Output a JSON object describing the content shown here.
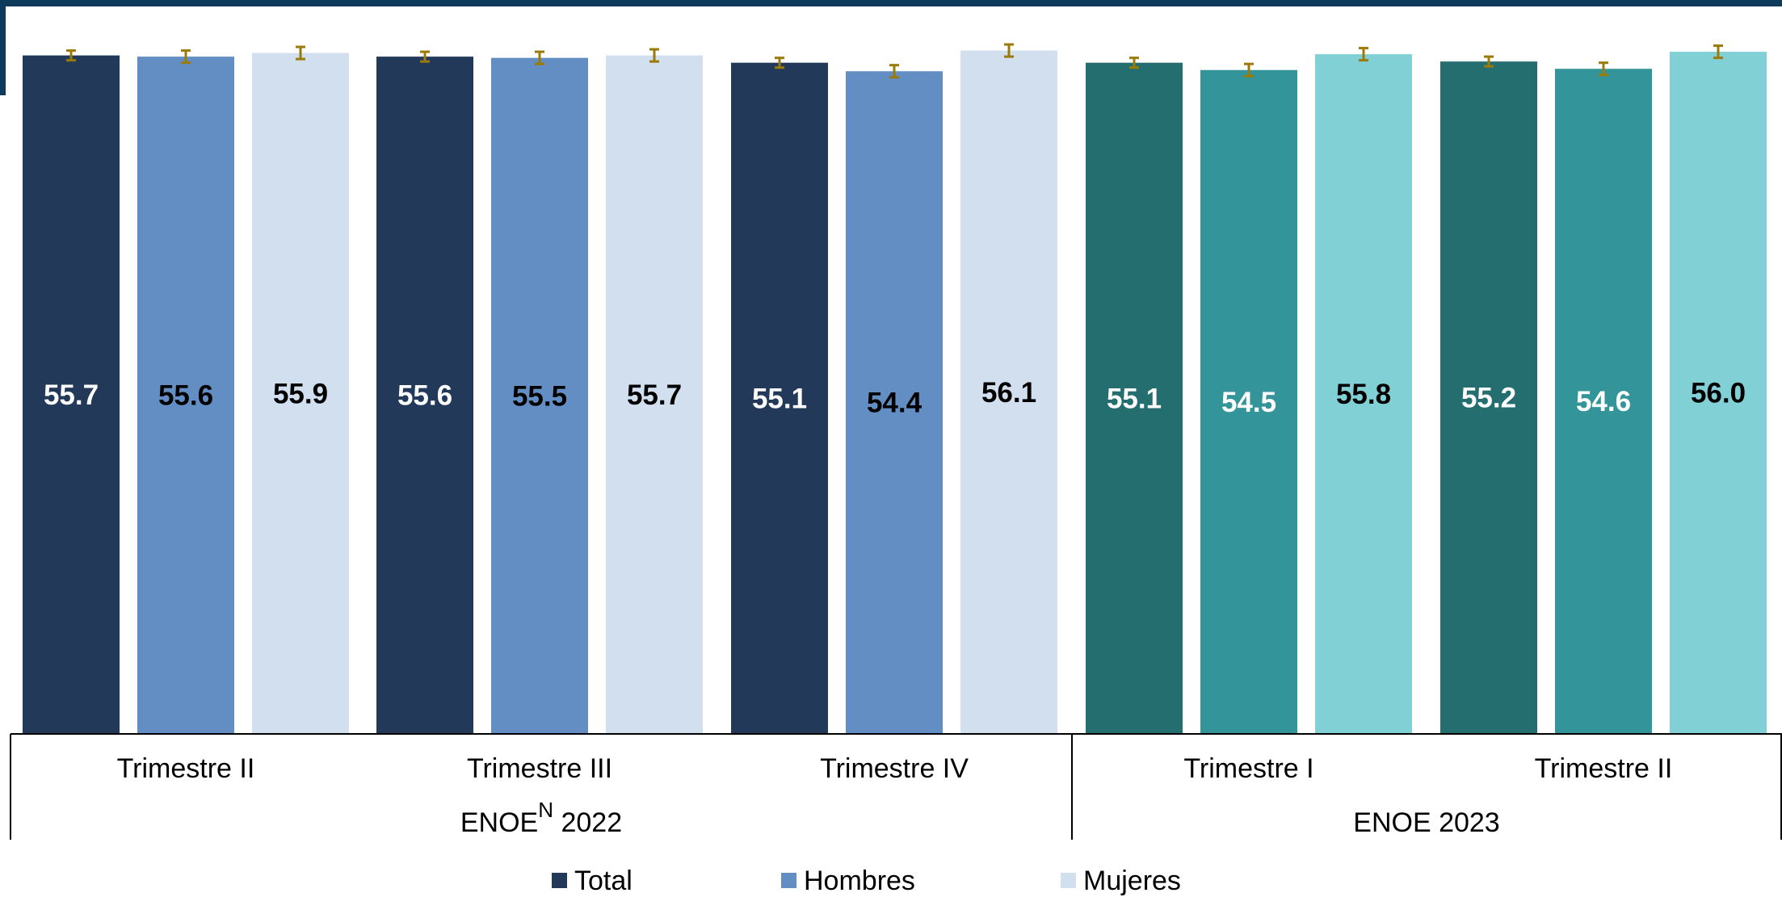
{
  "chart_data": {
    "type": "bar",
    "ylim": [
      0,
      57.2
    ],
    "groups": [
      {
        "label": "Trimestre II",
        "survey": "enoe2022",
        "bars": [
          {
            "series": "Total",
            "value": 55.7,
            "err": [
              55.3,
              56.1
            ]
          },
          {
            "series": "Hombres",
            "value": 55.6,
            "err": [
              55.1,
              56.1
            ]
          },
          {
            "series": "Mujeres",
            "value": 55.9,
            "err": [
              55.4,
              56.4
            ]
          }
        ]
      },
      {
        "label": "Trimestre III",
        "survey": "enoe2022",
        "bars": [
          {
            "series": "Total",
            "value": 55.6,
            "err": [
              55.2,
              56.0
            ]
          },
          {
            "series": "Hombres",
            "value": 55.5,
            "err": [
              55.0,
              56.0
            ]
          },
          {
            "series": "Mujeres",
            "value": 55.7,
            "err": [
              55.2,
              56.2
            ]
          }
        ]
      },
      {
        "label": "Trimestre IV",
        "survey": "enoe2022",
        "bars": [
          {
            "series": "Total",
            "value": 55.1,
            "err": [
              54.7,
              55.5
            ]
          },
          {
            "series": "Hombres",
            "value": 54.4,
            "err": [
              53.9,
              54.9
            ]
          },
          {
            "series": "Mujeres",
            "value": 56.1,
            "err": [
              55.6,
              56.6
            ]
          }
        ]
      },
      {
        "label": "Trimestre I",
        "survey": "enoe2023",
        "bars": [
          {
            "series": "Total",
            "value": 55.1,
            "err": [
              54.7,
              55.5
            ]
          },
          {
            "series": "Hombres",
            "value": 54.5,
            "err": [
              54.0,
              55.0
            ]
          },
          {
            "series": "Mujeres",
            "value": 55.8,
            "err": [
              55.3,
              56.3
            ]
          }
        ]
      },
      {
        "label": "Trimestre II",
        "survey": "enoe2023",
        "bars": [
          {
            "series": "Total",
            "value": 55.2,
            "err": [
              54.8,
              55.6
            ]
          },
          {
            "series": "Hombres",
            "value": 54.6,
            "err": [
              54.1,
              55.1
            ]
          },
          {
            "series": "Mujeres",
            "value": 56.0,
            "err": [
              55.5,
              56.5
            ]
          }
        ]
      }
    ],
    "surveys": [
      {
        "id": "enoe2022",
        "label": "ENOE",
        "superscript": "N",
        "label_suffix": " 2022"
      },
      {
        "id": "enoe2023",
        "label": "ENOE 2023"
      }
    ],
    "legend": {
      "placement": "bottom-center",
      "entries": [
        {
          "series": "Total",
          "color": "#22395A"
        },
        {
          "series": "Hombres",
          "color": "#628EC3"
        },
        {
          "series": "Mujeres",
          "color": "#D1DFEE"
        }
      ]
    },
    "colors": {
      "enoe2022": {
        "Total": "#22395A",
        "Hombres": "#628EC3",
        "Mujeres": "#D1DFEE"
      },
      "enoe2023": {
        "Total": "#246E70",
        "Hombres": "#33949A",
        "Mujeres": "#80D0D6"
      },
      "label_colors": {
        "enoe2022": {
          "Total": "#FFFFFF",
          "Hombres": "#000000",
          "Mujeres": "#000000"
        },
        "enoe2023": {
          "Total": "#FFFFFF",
          "Hombres": "#FFFFFF",
          "Mujeres": "#000000"
        }
      },
      "error_bar": "#9C7A09",
      "header_band": "#0E3B5C"
    },
    "grid": false
  }
}
